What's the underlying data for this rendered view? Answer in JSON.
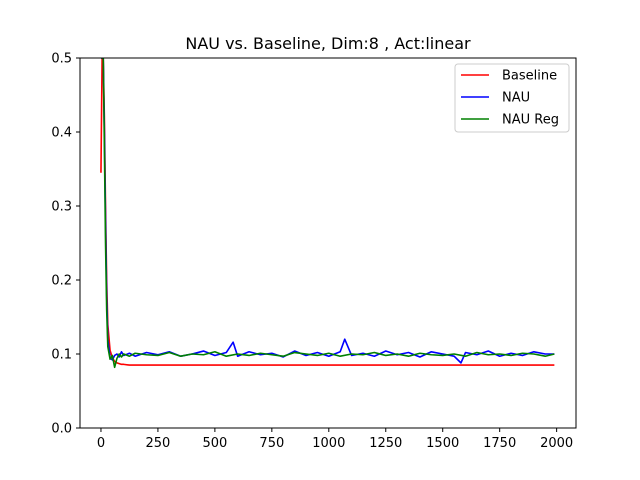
{
  "chart_data": {
    "type": "line",
    "title": "NAU vs. Baseline, Dim:8 , Act:linear",
    "xlabel": "",
    "ylabel": "",
    "xlim": [
      -92,
      2085
    ],
    "ylim": [
      0.0,
      0.5
    ],
    "xticks": [
      0,
      250,
      500,
      750,
      1000,
      1250,
      1500,
      1750,
      2000
    ],
    "xtick_labels": [
      "0",
      "250",
      "500",
      "750",
      "1000",
      "1250",
      "1500",
      "1750",
      "2000"
    ],
    "yticks": [
      0.0,
      0.1,
      0.2,
      0.3,
      0.4,
      0.5
    ],
    "ytick_labels": [
      "0.0",
      "0.1",
      "0.2",
      "0.3",
      "0.4",
      "0.5"
    ],
    "grid": false,
    "legend_position": "top-right",
    "series": [
      {
        "name": "Baseline",
        "color": "#ff0000",
        "x": [
          0,
          5,
          10,
          15,
          20,
          25,
          30,
          40,
          50,
          60,
          70,
          80,
          90,
          100,
          125,
          150,
          200,
          300,
          400,
          500,
          600,
          700,
          800,
          900,
          1000,
          1100,
          1200,
          1300,
          1400,
          1500,
          1600,
          1700,
          1800,
          1900,
          1990
        ],
        "y": [
          0.345,
          0.5,
          0.5,
          0.42,
          0.3,
          0.2,
          0.14,
          0.105,
          0.095,
          0.09,
          0.088,
          0.087,
          0.086,
          0.086,
          0.085,
          0.085,
          0.085,
          0.085,
          0.085,
          0.085,
          0.085,
          0.085,
          0.085,
          0.085,
          0.085,
          0.085,
          0.085,
          0.085,
          0.085,
          0.085,
          0.085,
          0.085,
          0.085,
          0.085,
          0.085
        ]
      },
      {
        "name": "NAU",
        "color": "#0000ff",
        "x": [
          0,
          5,
          10,
          15,
          20,
          25,
          30,
          40,
          50,
          60,
          70,
          80,
          90,
          100,
          125,
          150,
          200,
          250,
          300,
          350,
          400,
          450,
          500,
          550,
          580,
          600,
          650,
          700,
          750,
          800,
          850,
          900,
          950,
          1000,
          1050,
          1070,
          1100,
          1150,
          1200,
          1250,
          1300,
          1350,
          1400,
          1450,
          1500,
          1550,
          1580,
          1600,
          1650,
          1700,
          1750,
          1800,
          1850,
          1900,
          1950,
          1990
        ],
        "y": [
          0.5,
          0.5,
          0.5,
          0.4,
          0.28,
          0.18,
          0.12,
          0.095,
          0.092,
          0.098,
          0.1,
          0.096,
          0.103,
          0.098,
          0.101,
          0.097,
          0.102,
          0.099,
          0.103,
          0.097,
          0.1,
          0.104,
          0.098,
          0.102,
          0.116,
          0.097,
          0.103,
          0.099,
          0.101,
          0.096,
          0.104,
          0.098,
          0.102,
          0.097,
          0.103,
          0.12,
          0.098,
          0.101,
          0.097,
          0.104,
          0.099,
          0.102,
          0.096,
          0.103,
          0.1,
          0.097,
          0.088,
          0.102,
          0.099,
          0.104,
          0.097,
          0.101,
          0.098,
          0.103,
          0.1,
          0.1
        ]
      },
      {
        "name": "NAU Reg",
        "color": "#008000",
        "x": [
          0,
          5,
          10,
          15,
          20,
          25,
          30,
          40,
          50,
          60,
          70,
          80,
          90,
          100,
          125,
          150,
          200,
          250,
          300,
          350,
          400,
          450,
          500,
          550,
          600,
          650,
          700,
          750,
          800,
          850,
          900,
          950,
          1000,
          1050,
          1100,
          1150,
          1200,
          1250,
          1300,
          1350,
          1400,
          1450,
          1500,
          1550,
          1600,
          1650,
          1700,
          1750,
          1800,
          1850,
          1900,
          1950,
          1990
        ],
        "y": [
          0.5,
          0.5,
          0.5,
          0.38,
          0.25,
          0.16,
          0.11,
          0.093,
          0.098,
          0.082,
          0.094,
          0.1,
          0.096,
          0.1,
          0.097,
          0.101,
          0.099,
          0.098,
          0.102,
          0.097,
          0.1,
          0.099,
          0.103,
          0.097,
          0.1,
          0.098,
          0.101,
          0.099,
          0.097,
          0.102,
          0.1,
          0.098,
          0.101,
          0.097,
          0.1,
          0.099,
          0.102,
          0.098,
          0.1,
          0.097,
          0.101,
          0.099,
          0.098,
          0.1,
          0.097,
          0.102,
          0.099,
          0.1,
          0.098,
          0.101,
          0.1,
          0.097,
          0.1
        ]
      }
    ]
  }
}
